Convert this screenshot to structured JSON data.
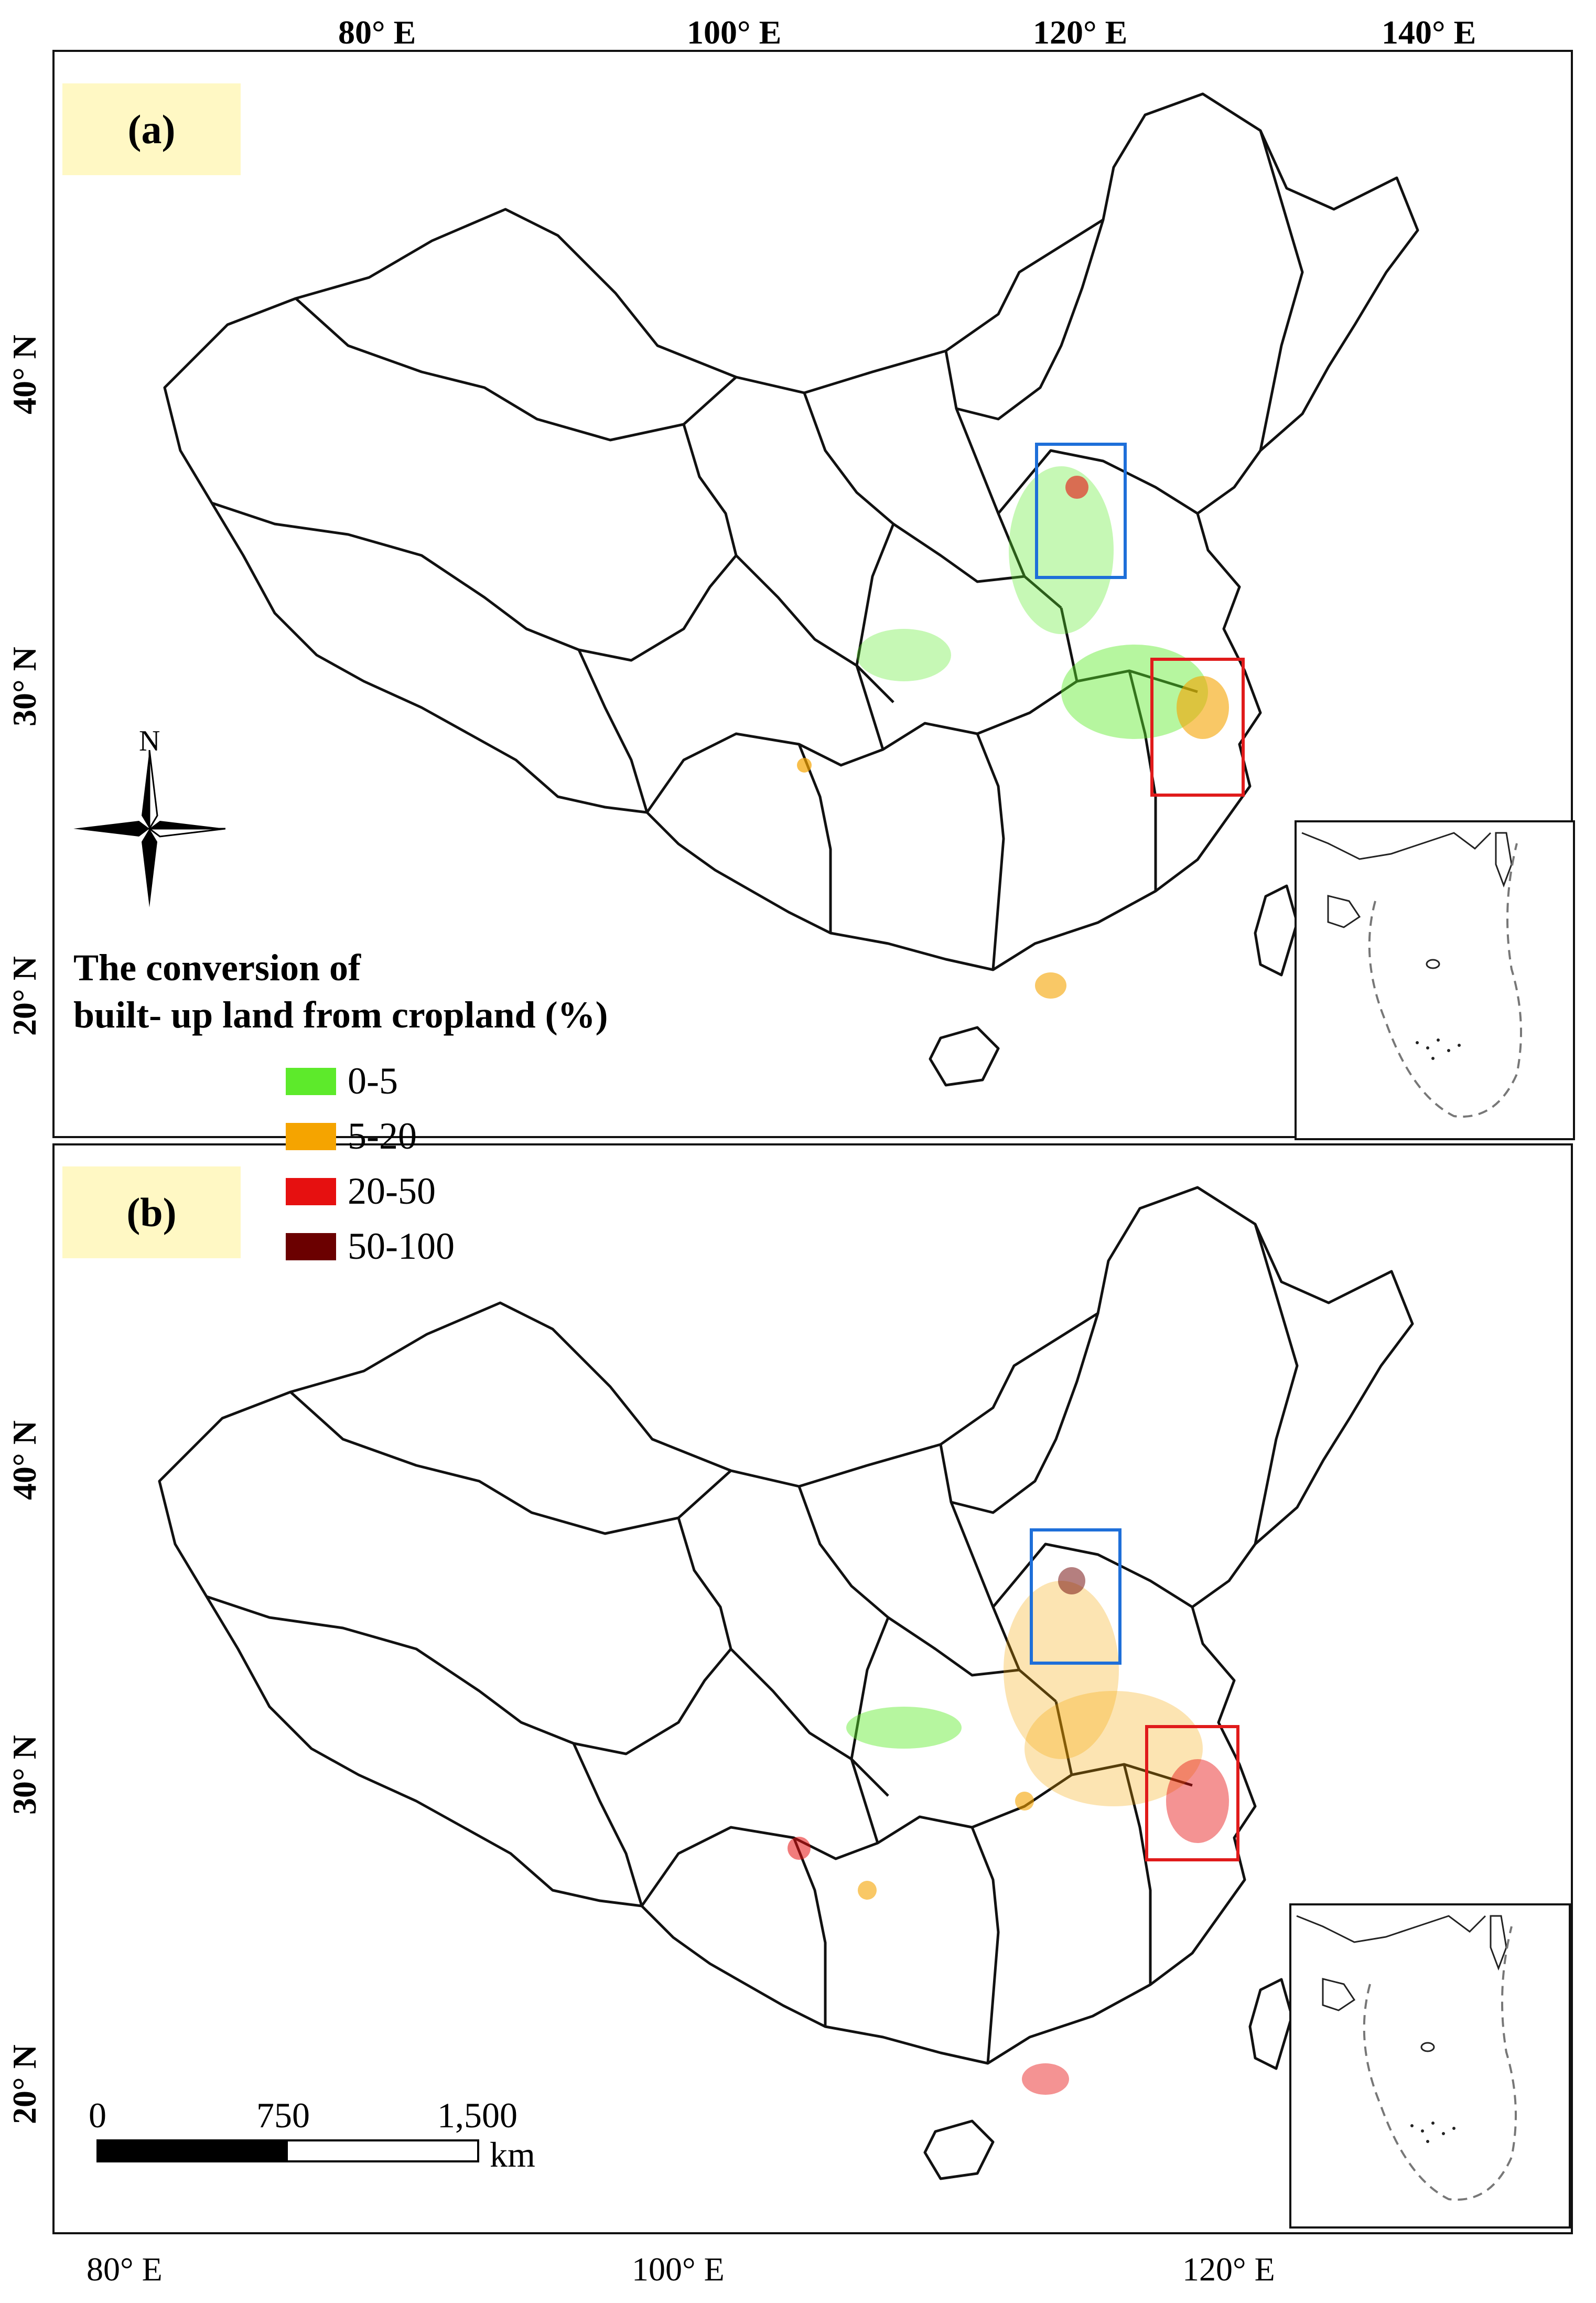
{
  "top_lon_labels": [
    "80° E",
    "100° E",
    "120° E",
    "140° E"
  ],
  "bottom_lon_labels": [
    "80° E",
    "100° E",
    "120° E"
  ],
  "lat_labels_a": [
    "40° N",
    "30° N",
    "20° N"
  ],
  "lat_labels_b": [
    "40° N",
    "30° N",
    "20° N"
  ],
  "panel_a": {
    "label": "(a)"
  },
  "panel_b": {
    "label": "(b)"
  },
  "north_arrow": {
    "letter": "N"
  },
  "legend": {
    "title_line1": "The conversion of",
    "title_line2": "built- up land from cropland (%)",
    "items": [
      {
        "label": "0-5",
        "color": "#5dea2b"
      },
      {
        "label": "5-20",
        "color": "#f5a400"
      },
      {
        "label": "20-50",
        "color": "#e61010"
      },
      {
        "label": "50-100",
        "color": "#6b0000"
      }
    ]
  },
  "scale_bar": {
    "ticks": [
      "0",
      "750",
      "1,500"
    ],
    "unit": "km"
  },
  "colors": {
    "blue_box": "#1e6fd9",
    "red_box": "#e01b1b",
    "label_bg": "#fff8c4"
  }
}
